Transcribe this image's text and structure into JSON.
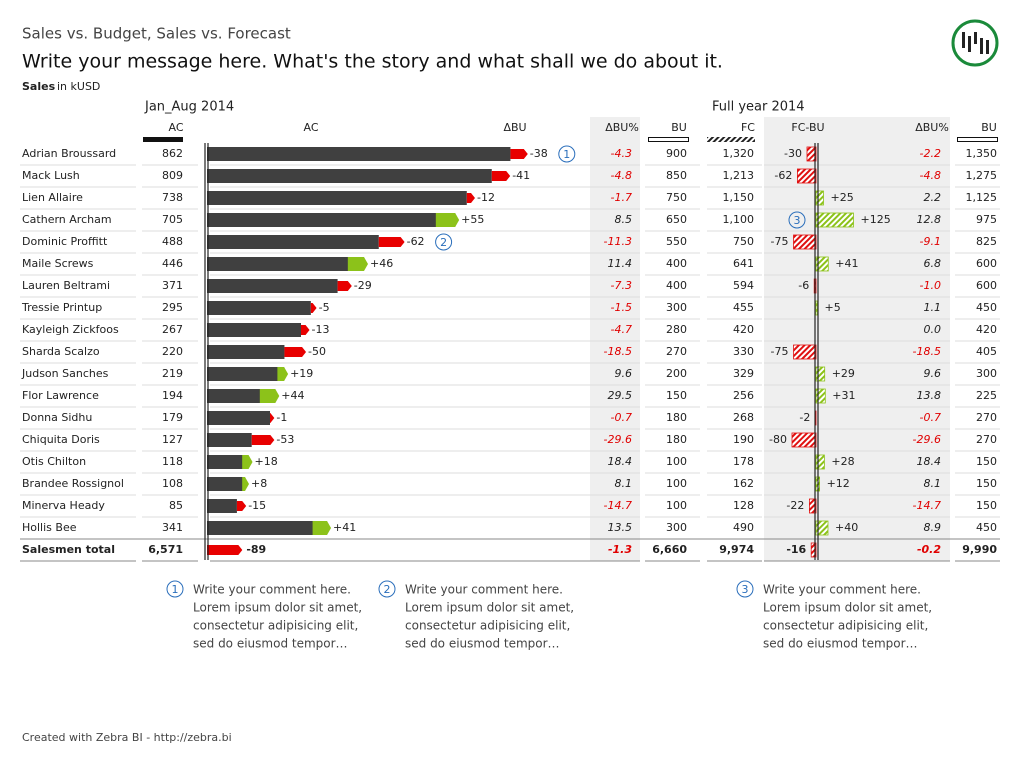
{
  "header": {
    "title": "Sales vs. Budget, Sales vs. Forecast",
    "message": "Write your message here. What's the story and what shall we do about it.",
    "measure": "Sales",
    "unit": "in kUSD",
    "period_ytd": "Jan_Aug 2014",
    "period_fy": "Full year 2014"
  },
  "columns": {
    "ac": "AC",
    "ac_bar": "AC",
    "dbu": "ΔBU",
    "dbu_pct": "ΔBU%",
    "bu": "BU",
    "fc": "FC",
    "fcbu": "FC-BU",
    "fy_dbu_pct": "ΔBU%",
    "fy_bu": "BU"
  },
  "rows": [
    {
      "name": "Adrian Broussard",
      "ac": 862,
      "dbu": -38,
      "dbu_pct": -4.3,
      "bu": 900,
      "fc": {
        "value": 1320,
        "label": "1,320"
      },
      "fcbu": -30,
      "fy_dbu_pct": -2.2,
      "fy_bu": {
        "value": 1350,
        "label": "1,350"
      },
      "marker_bu": "1"
    },
    {
      "name": "Mack Lush",
      "ac": 809,
      "dbu": -41,
      "dbu_pct": -4.8,
      "bu": 850,
      "fc": {
        "value": 1213,
        "label": "1,213"
      },
      "fcbu": -62,
      "fy_dbu_pct": -4.8,
      "fy_bu": {
        "value": 1275,
        "label": "1,275"
      }
    },
    {
      "name": "Lien Allaire",
      "ac": 738,
      "dbu": -12,
      "dbu_pct": -1.7,
      "bu": 750,
      "fc": {
        "value": 1150,
        "label": "1,150"
      },
      "fcbu": {
        "value": 25,
        "label": "+25"
      },
      "fy_dbu_pct": 2.2,
      "fy_bu": {
        "value": 1125,
        "label": "1,125"
      }
    },
    {
      "name": "Cathern Archam",
      "ac": 705,
      "dbu": {
        "value": 55,
        "label": "+55"
      },
      "dbu_pct": 8.5,
      "bu": 650,
      "fc": {
        "value": 1100,
        "label": "1,100"
      },
      "fcbu": {
        "value": 125,
        "label": "+125"
      },
      "fy_dbu_pct": 12.8,
      "fy_bu": 975,
      "marker_fc": "3"
    },
    {
      "name": "Dominic Proffitt",
      "ac": 488,
      "dbu": -62,
      "dbu_pct": -11.3,
      "bu": 550,
      "fc": 750,
      "fcbu": -75,
      "fy_dbu_pct": -9.1,
      "fy_bu": 825,
      "marker_bu": "2"
    },
    {
      "name": "Maile Screws",
      "ac": 446,
      "dbu": {
        "value": 46,
        "label": "+46"
      },
      "dbu_pct": 11.4,
      "bu": 400,
      "fc": 641,
      "fcbu": {
        "value": 41,
        "label": "+41"
      },
      "fy_dbu_pct": 6.8,
      "fy_bu": 600
    },
    {
      "name": "Lauren Beltrami",
      "ac": 371,
      "dbu": -29,
      "dbu_pct": -7.3,
      "bu": 400,
      "fc": 594,
      "fcbu": -6,
      "fy_dbu_pct": {
        "value": -1,
        "label": "-1.0"
      },
      "fy_bu": 600
    },
    {
      "name": "Tressie Printup",
      "ac": 295,
      "dbu": -5,
      "dbu_pct": -1.5,
      "bu": 300,
      "fc": 455,
      "fcbu": {
        "value": 5,
        "label": "+5"
      },
      "fy_dbu_pct": 1.1,
      "fy_bu": 450
    },
    {
      "name": "Kayleigh Zickfoos",
      "ac": 267,
      "dbu": -13,
      "dbu_pct": -4.7,
      "bu": 280,
      "fc": 420,
      "fcbu": null,
      "fy_dbu_pct": {
        "value": 0,
        "label": "0.0"
      },
      "fy_bu": 420
    },
    {
      "name": "Sharda Scalzo",
      "ac": 220,
      "dbu": -50,
      "dbu_pct": -18.5,
      "bu": 270,
      "fc": 330,
      "fcbu": -75,
      "fy_dbu_pct": -18.5,
      "fy_bu": 405
    },
    {
      "name": "Judson Sanches",
      "ac": 219,
      "dbu": {
        "value": 19,
        "label": "+19"
      },
      "dbu_pct": 9.6,
      "bu": 200,
      "fc": 329,
      "fcbu": {
        "value": 29,
        "label": "+29"
      },
      "fy_dbu_pct": 9.6,
      "fy_bu": 300
    },
    {
      "name": "Flor Lawrence",
      "ac": 194,
      "dbu": {
        "value": 44,
        "label": "+44"
      },
      "dbu_pct": 29.5,
      "bu": 150,
      "fc": 256,
      "fcbu": {
        "value": 31,
        "label": "+31"
      },
      "fy_dbu_pct": 13.8,
      "fy_bu": 225
    },
    {
      "name": "Donna Sidhu",
      "ac": 179,
      "dbu": -1,
      "dbu_pct": -0.7,
      "bu": 180,
      "fc": 268,
      "fcbu": -2,
      "fy_dbu_pct": -0.7,
      "fy_bu": 270
    },
    {
      "name": "Chiquita Doris",
      "ac": 127,
      "dbu": -53,
      "dbu_pct": -29.6,
      "bu": 180,
      "fc": 190,
      "fcbu": -80,
      "fy_dbu_pct": -29.6,
      "fy_bu": 270
    },
    {
      "name": "Otis Chilton",
      "ac": 118,
      "dbu": {
        "value": 18,
        "label": "+18"
      },
      "dbu_pct": 18.4,
      "bu": 100,
      "fc": 178,
      "fcbu": {
        "value": 28,
        "label": "+28"
      },
      "fy_dbu_pct": 18.4,
      "fy_bu": 150
    },
    {
      "name": "Brandee Rossignol",
      "ac": 108,
      "dbu": {
        "value": 8,
        "label": "+8"
      },
      "dbu_pct": 8.1,
      "bu": 100,
      "fc": 162,
      "fcbu": {
        "value": 12,
        "label": "+12"
      },
      "fy_dbu_pct": 8.1,
      "fy_bu": 150
    },
    {
      "name": "Minerva Heady",
      "ac": 85,
      "dbu": -15,
      "dbu_pct": -14.7,
      "bu": 100,
      "fc": 128,
      "fcbu": -22,
      "fy_dbu_pct": -14.7,
      "fy_bu": 150
    },
    {
      "name": "Hollis Bee",
      "ac": 341,
      "dbu": {
        "value": 41,
        "label": "+41"
      },
      "dbu_pct": 13.5,
      "bu": 300,
      "fc": 490,
      "fcbu": {
        "value": 40,
        "label": "+40"
      },
      "fy_dbu_pct": 8.9,
      "fy_bu": 450
    }
  ],
  "total": {
    "name": "Salesmen total",
    "ac": {
      "value": 6571,
      "label": "6,571"
    },
    "dbu": -89,
    "dbu_pct": -1.3,
    "bu": {
      "value": 6660,
      "label": "6,660"
    },
    "fc": {
      "value": 9974,
      "label": "9,974"
    },
    "fcbu": -16,
    "fy_dbu_pct": -0.2,
    "fy_bu": {
      "value": 9990,
      "label": "9,990"
    }
  },
  "comments": [
    {
      "number": "1",
      "lines": [
        "Write your comment here.",
        "Lorem ipsum dolor sit amet,",
        "consectetur adipisicing elit,",
        "sed do eiusmod tempor…"
      ]
    },
    {
      "number": "2",
      "lines": [
        "Write your comment here.",
        "Lorem ipsum dolor sit amet,",
        "consectetur adipisicing elit,",
        "sed do eiusmod tempor…"
      ]
    },
    {
      "number": "3",
      "lines": [
        "Write your comment here.",
        "Lorem ipsum dolor sit amet,",
        "consectetur adipisicing elit,",
        "sed do eiusmod tempor…"
      ]
    }
  ],
  "footer": "Created with Zebra BI - http://zebra.bi"
}
